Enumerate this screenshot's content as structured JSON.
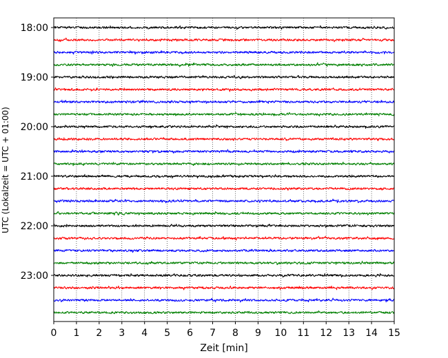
{
  "chart_data": {
    "type": "line",
    "title": "",
    "xlabel": "Zeit  [min]",
    "ylabel": "UTC (Lokalzeit = UTC + 01:00)",
    "xlim": [
      0,
      15
    ],
    "x_ticks": [
      "0",
      "1",
      "2",
      "3",
      "4",
      "5",
      "6",
      "7",
      "8",
      "9",
      "10",
      "11",
      "12",
      "13",
      "14",
      "15"
    ],
    "y_tick_labels": [
      "18:00",
      "19:00",
      "20:00",
      "21:00",
      "22:00",
      "23:00"
    ],
    "trace_interval_min": 15,
    "trace_count": 24,
    "trace_start": "18:00",
    "trace_end": "23:45",
    "series_colors": [
      "#000000",
      "#ff0000",
      "#0000ff",
      "#008000"
    ],
    "grid": "vertical dotted lines at each minute",
    "legend": "none"
  }
}
